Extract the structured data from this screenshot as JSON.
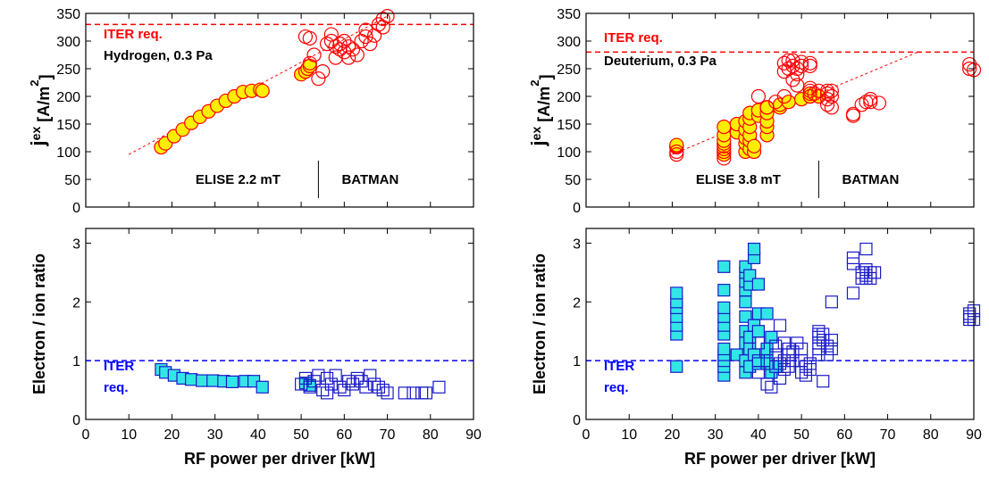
{
  "chart_data": [
    {
      "type": "scatter",
      "ylabel_parts": [
        "j",
        "ex",
        " [A/m",
        "2",
        "]"
      ],
      "xlim": [
        0,
        90
      ],
      "ylim": [
        0,
        350
      ],
      "xticks": [
        0,
        10,
        20,
        30,
        40,
        50,
        60,
        70,
        80,
        90
      ],
      "yticks": [
        0,
        50,
        100,
        150,
        200,
        250,
        300,
        350
      ],
      "xtick_labels": false,
      "ref_line": {
        "value": 330,
        "color": "#ff0000",
        "label": [
          "ITER req."
        ]
      },
      "info": "Hydrogen, 0.3 Pa",
      "regions": [
        "ELISE 2.2 mT",
        "BATMAN"
      ],
      "divider_x": 54,
      "trend": {
        "x": [
          10,
          70
        ],
        "values": [
          95,
          345
        ],
        "color": "#ff0000"
      },
      "series": [
        {
          "marker": "filled-circle",
          "color": "#ff0000",
          "fill": "#ffee00",
          "x": [
            17.5,
            18.5,
            20.5,
            22.5,
            24.5,
            26.5,
            28.5,
            30.5,
            32.5,
            34.5,
            36.5,
            38.5,
            40.5,
            41,
            50,
            51,
            51.5,
            52
          ],
          "values": [
            108,
            115,
            128,
            140,
            152,
            163,
            173,
            183,
            192,
            200,
            208,
            210,
            212,
            210,
            240,
            245,
            250,
            255
          ]
        },
        {
          "marker": "open-circle",
          "color": "#ff0000",
          "x": [
            51,
            52,
            53,
            52,
            54,
            55,
            56,
            57,
            57,
            58,
            58,
            59,
            59,
            60,
            60,
            61,
            61,
            62,
            63,
            64,
            65,
            65,
            66,
            67,
            68,
            69,
            69,
            70
          ],
          "values": [
            308,
            305,
            275,
            260,
            232,
            245,
            295,
            300,
            312,
            270,
            290,
            285,
            295,
            280,
            300,
            290,
            270,
            285,
            275,
            300,
            320,
            308,
            295,
            310,
            330,
            340,
            325,
            345
          ]
        }
      ]
    },
    {
      "type": "scatter",
      "ylabel_parts": [
        "j",
        "ex",
        " [A/m",
        "2",
        "]"
      ],
      "xlim": [
        0,
        90
      ],
      "ylim": [
        0,
        350
      ],
      "xticks": [
        0,
        10,
        20,
        30,
        40,
        50,
        60,
        70,
        80,
        90
      ],
      "yticks": [
        0,
        50,
        100,
        150,
        200,
        250,
        300,
        350
      ],
      "xtick_labels": false,
      "ref_line": {
        "value": 280,
        "color": "#ff0000",
        "label": [
          "ITER req."
        ]
      },
      "info": "Deuterium, 0.3 Pa",
      "regions": [
        "ELISE 3.8 mT",
        "BATMAN"
      ],
      "divider_x": 54,
      "trend": {
        "x": [
          20,
          77
        ],
        "values": [
          95,
          280
        ],
        "color": "#ff0000"
      },
      "series": [
        {
          "marker": "filled-circle",
          "color": "#ff0000",
          "fill": "#ffee00",
          "x": [
            21,
            21,
            21,
            32,
            32,
            32,
            32,
            32,
            32,
            32,
            32,
            35,
            35,
            37,
            37,
            37,
            37,
            37,
            38,
            38,
            38,
            38,
            38,
            38,
            39,
            39,
            40,
            40,
            42,
            42,
            42,
            42,
            42,
            45,
            45,
            47,
            50,
            52,
            52,
            54
          ],
          "values": [
            108,
            110,
            112,
            95,
            100,
            105,
            110,
            115,
            120,
            130,
            145,
            135,
            150,
            100,
            115,
            125,
            140,
            155,
            105,
            120,
            130,
            145,
            160,
            170,
            100,
            110,
            165,
            175,
            130,
            145,
            155,
            170,
            180,
            180,
            185,
            190,
            195,
            200,
            205,
            200
          ]
        },
        {
          "marker": "open-circle",
          "color": "#ff0000",
          "x": [
            21,
            21,
            32,
            40,
            42,
            44,
            46,
            46,
            46,
            47,
            47,
            48,
            48,
            48,
            49,
            49,
            49,
            50,
            50,
            52,
            52,
            52,
            52,
            52,
            53,
            54,
            56,
            56,
            56,
            56,
            57,
            57,
            57,
            62,
            62,
            64,
            65,
            66,
            66,
            68,
            89,
            89,
            90
          ],
          "values": [
            95,
            100,
            88,
            200,
            180,
            190,
            200,
            245,
            260,
            265,
            250,
            255,
            265,
            230,
            220,
            240,
            250,
            262,
            255,
            200,
            210,
            215,
            260,
            255,
            205,
            210,
            195,
            205,
            210,
            185,
            180,
            200,
            210,
            165,
            168,
            185,
            190,
            195,
            190,
            188,
            258,
            250,
            248
          ]
        }
      ]
    },
    {
      "type": "scatter",
      "ylabel": "Electron / ion ratio",
      "xlabel": "RF power per driver [kW]",
      "xlim": [
        0,
        90
      ],
      "ylim": [
        0,
        3.25
      ],
      "xticks": [
        0,
        10,
        20,
        30,
        40,
        50,
        60,
        70,
        80,
        90
      ],
      "yticks": [
        0,
        1,
        2,
        3
      ],
      "xtick_labels": true,
      "ref_line": {
        "value": 1,
        "color": "#0000ff",
        "label": [
          "ITER",
          "req."
        ]
      },
      "series": [
        {
          "marker": "filled-square",
          "color": "#1a1ac8",
          "fill": "#33e6e6",
          "x": [
            17.5,
            18.5,
            20.5,
            22.5,
            24.5,
            27,
            29.5,
            32,
            34,
            37,
            39,
            41,
            51,
            52
          ],
          "values": [
            0.85,
            0.8,
            0.75,
            0.7,
            0.68,
            0.66,
            0.66,
            0.65,
            0.64,
            0.65,
            0.65,
            0.55,
            0.62,
            0.58
          ]
        },
        {
          "marker": "open-square",
          "color": "#1a1ac8",
          "x": [
            50,
            51,
            52,
            53,
            54,
            55,
            56,
            56,
            57,
            58,
            59,
            60,
            61,
            62,
            63,
            64,
            65,
            66,
            67,
            68,
            69,
            70,
            74,
            76,
            78,
            79,
            82
          ],
          "values": [
            0.6,
            0.7,
            0.55,
            0.65,
            0.75,
            0.5,
            0.45,
            0.7,
            0.6,
            0.75,
            0.55,
            0.5,
            0.65,
            0.6,
            0.7,
            0.65,
            0.55,
            0.75,
            0.6,
            0.55,
            0.5,
            0.45,
            0.45,
            0.45,
            0.45,
            0.45,
            0.55
          ]
        }
      ]
    },
    {
      "type": "scatter",
      "ylabel": "Electron / ion ratio",
      "xlabel": "RF power per driver  [kW]",
      "xlim": [
        0,
        90
      ],
      "ylim": [
        0,
        3.25
      ],
      "xticks": [
        0,
        10,
        20,
        30,
        40,
        50,
        60,
        70,
        80,
        90
      ],
      "yticks": [
        0,
        1,
        2,
        3
      ],
      "xtick_labels": true,
      "ref_line": {
        "value": 1,
        "color": "#0000ff",
        "label": [
          "ITER",
          "req."
        ]
      },
      "series": [
        {
          "marker": "filled-square",
          "color": "#1a1ac8",
          "fill": "#33e6e6",
          "x": [
            21,
            21,
            21,
            21,
            21,
            21,
            21,
            32,
            32,
            32,
            32,
            32,
            32,
            32,
            32,
            32,
            32,
            32,
            35,
            37,
            37,
            37,
            37,
            37,
            37,
            37,
            37,
            37,
            37,
            38,
            38,
            38,
            38,
            38,
            39,
            39,
            39,
            39,
            40,
            40,
            40,
            40,
            42,
            42,
            42,
            43,
            43,
            44
          ],
          "values": [
            0.9,
            1.45,
            1.6,
            1.75,
            1.9,
            2.0,
            2.15,
            0.75,
            0.9,
            1.0,
            1.1,
            1.2,
            1.45,
            1.6,
            1.75,
            1.9,
            2.2,
            2.6,
            1.1,
            0.8,
            1.0,
            1.3,
            1.5,
            1.75,
            2.0,
            2.2,
            2.35,
            2.5,
            2.6,
            0.9,
            1.2,
            1.4,
            2.3,
            2.45,
            2.75,
            2.9,
            1.6,
            1.1,
            0.95,
            1.5,
            1.8,
            2.3,
            1.0,
            1.2,
            1.8,
            0.8,
            1.4,
            0.9
          ]
        },
        {
          "marker": "open-square",
          "color": "#1a1ac8",
          "x": [
            40,
            40,
            40,
            42,
            42,
            43,
            44,
            44,
            45,
            45,
            45,
            46,
            46,
            46,
            47,
            47,
            47,
            48,
            48,
            49,
            50,
            50,
            50,
            51,
            51,
            52,
            52,
            54,
            54,
            54,
            54,
            54,
            54,
            55,
            55,
            55,
            56,
            56,
            57,
            57,
            57,
            62,
            62,
            62,
            64,
            64,
            65,
            65,
            65,
            65,
            66,
            66,
            67,
            89,
            89,
            89,
            90,
            90
          ],
          "values": [
            1.0,
            0.8,
            1.3,
            0.6,
            0.95,
            0.55,
            1.1,
            1.25,
            1.6,
            0.95,
            0.7,
            1.3,
            1.0,
            0.85,
            1.1,
            1.2,
            0.9,
            1.0,
            1.15,
            1.3,
            1.2,
            0.8,
            1.0,
            0.75,
            0.9,
            0.85,
            0.95,
            1.5,
            1.45,
            1.4,
            1.3,
            1.2,
            1.1,
            0.65,
            1.35,
            1.45,
            1.25,
            1.1,
            1.35,
            1.2,
            2.0,
            2.15,
            2.65,
            2.75,
            2.4,
            2.5,
            2.45,
            2.4,
            2.55,
            2.9,
            2.5,
            2.4,
            2.5,
            1.7,
            1.75,
            1.8,
            1.7,
            1.85
          ]
        }
      ]
    }
  ]
}
